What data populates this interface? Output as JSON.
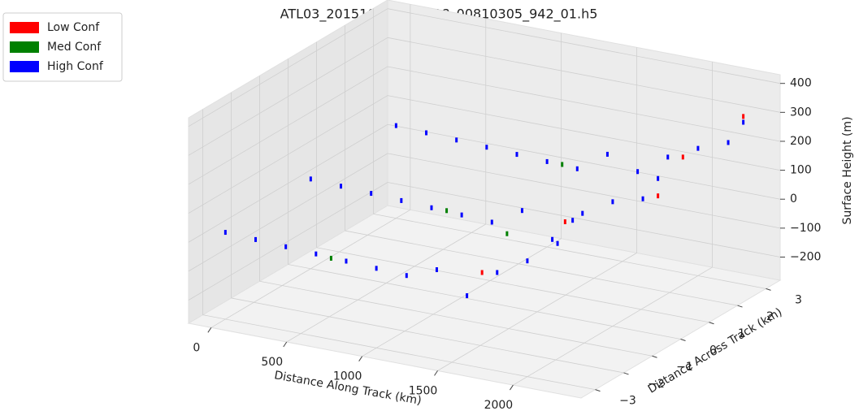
{
  "chart_data": {
    "type": "scatter3d",
    "title": "ATL03_20151027T045618_00810305_942_01.h5",
    "x_label": "Distance Along Track (km)",
    "y_label": "Distance Across Track (km)",
    "z_label": "Surface Height (m)",
    "xlim": [
      -150,
      2450
    ],
    "ylim": [
      -3.5,
      3.5
    ],
    "zlim": [
      -280,
      430
    ],
    "xticks": [
      0,
      500,
      1000,
      1500,
      2000
    ],
    "yticks": [
      {
        "value": -3,
        "label": "−3"
      },
      {
        "value": -2,
        "label": "−2"
      },
      {
        "value": -1,
        "label": "−1"
      },
      0,
      1,
      2,
      3
    ],
    "zticks": [
      {
        "value": -200,
        "label": "−200"
      },
      {
        "value": -100,
        "label": "−100"
      },
      0,
      100,
      200,
      300,
      400
    ],
    "grid": true,
    "legend_position": "upper-left",
    "series": [
      {
        "name": "Low Conf",
        "color": "#ff0000",
        "x": [
          1700,
          2250,
          2300,
          1900,
          2300
        ],
        "y": [
          -3,
          -3,
          0,
          3,
          3
        ],
        "z": [
          50,
          280,
          200,
          120,
          300
        ]
      },
      {
        "name": "Med Conf",
        "color": "#008000",
        "x": [
          700,
          900,
          1100,
          1300
        ],
        "y": [
          -3,
          0,
          3,
          0
        ],
        "z": [
          0,
          10,
          15,
          -30
        ]
      },
      {
        "name": "High Conf",
        "color": "#0000ff",
        "x": [
          0,
          200,
          400,
          600,
          800,
          1000,
          1200,
          1400,
          1600,
          1800,
          2000,
          2200,
          2300,
          0,
          200,
          400,
          600,
          800,
          1000,
          1200,
          1400,
          1600,
          1800,
          2000,
          2200,
          2300,
          0,
          200,
          400,
          600,
          800,
          1000,
          1200,
          1400,
          1600,
          1800,
          2000,
          2200,
          2300
        ],
        "y": [
          -3,
          -3,
          -3,
          -3,
          -3,
          -3,
          -3,
          -3,
          -3,
          -3,
          -3,
          -3,
          -3,
          0,
          0,
          0,
          0,
          0,
          0,
          0,
          0,
          0,
          0,
          0,
          0,
          0,
          3,
          3,
          3,
          3,
          3,
          3,
          3,
          3,
          3,
          3,
          3,
          3,
          3
        ],
        "z": [
          20,
          15,
          10,
          5,
          0,
          -5,
          -10,
          30,
          -40,
          60,
          120,
          200,
          290,
          30,
          25,
          20,
          15,
          10,
          5,
          0,
          60,
          -20,
          90,
          150,
          180,
          260,
          40,
          35,
          30,
          25,
          20,
          15,
          10,
          80,
          40,
          110,
          160,
          200,
          280
        ]
      }
    ]
  }
}
